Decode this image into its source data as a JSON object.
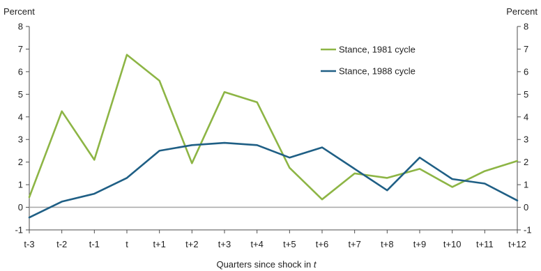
{
  "chart_data": {
    "type": "line",
    "y_unit_left": "Percent",
    "y_unit_right": "Percent",
    "xlabel_text": "Quarters since shock in ",
    "xlabel_italic": "t",
    "categories": [
      "t-3",
      "t-2",
      "t-1",
      "t",
      "t+1",
      "t+2",
      "t+3",
      "t+4",
      "t+5",
      "t+6",
      "t+7",
      "t+8",
      "t+9",
      "t+10",
      "t+11",
      "t+12"
    ],
    "ylim": [
      -1,
      8
    ],
    "yticks": [
      "-1",
      "0",
      "1",
      "2",
      "3",
      "4",
      "5",
      "6",
      "7",
      "8"
    ],
    "grid": false,
    "legend_position": "top-right",
    "series": [
      {
        "name": "Stance, 1981 cycle",
        "color": "#8db545",
        "values": [
          0.45,
          4.25,
          2.1,
          6.75,
          5.6,
          1.95,
          5.1,
          4.65,
          1.75,
          0.35,
          1.5,
          1.3,
          1.7,
          0.9,
          1.6,
          2.05
        ]
      },
      {
        "name": "Stance, 1988 cycle",
        "color": "#1f5f85",
        "values": [
          -0.45,
          0.25,
          0.6,
          1.3,
          2.5,
          2.75,
          2.85,
          2.75,
          2.2,
          2.65,
          1.7,
          0.75,
          2.2,
          1.25,
          1.05,
          0.3
        ]
      }
    ],
    "zero_line_color": "#a6a6a6",
    "axis_color": "#4d4d4d"
  }
}
